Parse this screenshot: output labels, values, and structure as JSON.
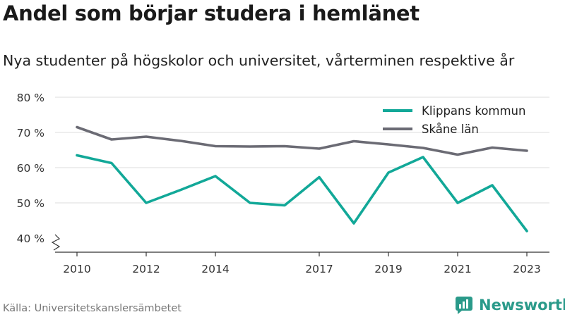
{
  "title": "Andel som börjar studera i hemlänet",
  "subtitle": "Nya studenter på högskolor och universitet, vårterminen respektive år",
  "source": "Källa: Universitetskanslersämbetet",
  "brand": {
    "name": "Newsworthy",
    "icon": "bar-chart-logo-icon",
    "color": "#2a9a8a"
  },
  "chart_data": {
    "type": "line",
    "x": [
      2010,
      2011,
      2012,
      2013,
      2014,
      2015,
      2016,
      2017,
      2018,
      2019,
      2020,
      2021,
      2022,
      2023
    ],
    "x_tick_labels": [
      "2010",
      "2012",
      "2014",
      "2017",
      "2019",
      "2021",
      "2023"
    ],
    "x_ticks": [
      2010,
      2012,
      2014,
      2017,
      2019,
      2021,
      2023
    ],
    "y_ticks": [
      40,
      50,
      60,
      70,
      80
    ],
    "y_tick_labels": [
      "40 %",
      "50 %",
      "60 %",
      "70 %",
      "80 %"
    ],
    "ylim": [
      40,
      80
    ],
    "y_axis_break": true,
    "grid": true,
    "legend_position": "top-right",
    "series": [
      {
        "name": "Klippans kommun",
        "color": "#12a898",
        "values": [
          63.5,
          61.3,
          50.0,
          53.7,
          57.6,
          50.0,
          49.3,
          57.3,
          44.2,
          58.6,
          63.0,
          50.0,
          55.0,
          42.0
        ]
      },
      {
        "name": "Skåne län",
        "color": "#6b6b74",
        "values": [
          71.5,
          68.0,
          68.8,
          67.6,
          66.1,
          66.0,
          66.1,
          65.4,
          67.5,
          66.6,
          65.6,
          63.7,
          65.7,
          64.8
        ]
      }
    ]
  }
}
